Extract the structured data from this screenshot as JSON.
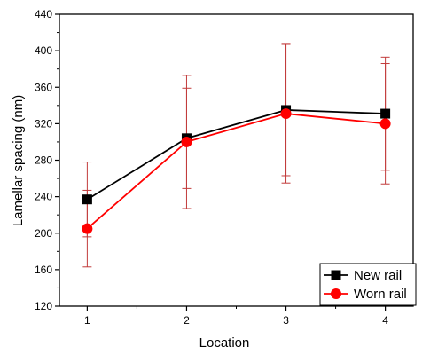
{
  "chart_data": {
    "type": "line",
    "title": "",
    "xlabel": "Location",
    "ylabel": "Lamellar spacing (nm)",
    "x": [
      1,
      2,
      3,
      4
    ],
    "xlim": [
      0.72,
      4.28
    ],
    "ylim": [
      120,
      440
    ],
    "yticks": [
      120,
      160,
      200,
      240,
      280,
      320,
      360,
      400,
      440
    ],
    "xticks": [
      1,
      2,
      3,
      4
    ],
    "legend": "bottom-right",
    "grid": false,
    "series": [
      {
        "name": "New rail",
        "marker": "square",
        "color": "#000000",
        "errorbar_color": "#c23b3b",
        "values": [
          237,
          304,
          335,
          331
        ],
        "error": [
          41,
          55,
          72,
          62
        ]
      },
      {
        "name": "Worn rail",
        "marker": "circle",
        "color": "#ff0000",
        "errorbar_color": "#c23b3b",
        "values": [
          205,
          300,
          331,
          320
        ],
        "error": [
          42,
          73,
          76,
          66
        ]
      }
    ]
  }
}
